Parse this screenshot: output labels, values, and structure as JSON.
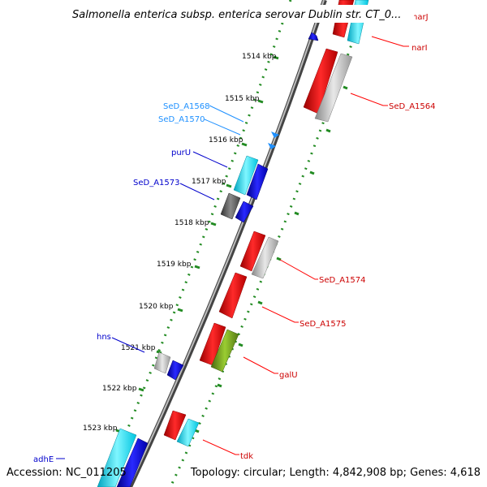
{
  "title": "Salmonella enterica subsp. enterica serovar Dublin str. CT_0...",
  "footer": {
    "accession": "Accession: NC_011205",
    "summary": "Topology: circular; Length: 4,842,908 bp; Genes: 4,618"
  },
  "kbp_labels": [
    "1514 kbp",
    "1515 kbp",
    "1516 kbp",
    "1517 kbp",
    "1518 kbp",
    "1519 kbp",
    "1520 kbp",
    "1521 kbp",
    "1522 kbp",
    "1523 kbp"
  ],
  "gene_labels": {
    "narJ": "narJ",
    "narI": "narI",
    "SeD_A1564": "SeD_A1564",
    "SeD_A1568": "SeD_A1568",
    "SeD_A1570": "SeD_A1570",
    "purU": "purU",
    "SeD_A1573": "SeD_A1573",
    "SeD_A1574": "SeD_A1574",
    "SeD_A1575": "SeD_A1575",
    "hns": "hns",
    "galU": "galU",
    "tdk": "tdk",
    "adhE": "adhE"
  },
  "colors": {
    "red": "#ff0000",
    "light_blue": "#1e90ff",
    "blue": "#0000cc",
    "cyan": "#00e5ff",
    "gray": "#bbbbbb",
    "dark_gray": "#666666",
    "olive": "#6b8e23",
    "green": "#228b22",
    "backbone": "#777777"
  }
}
